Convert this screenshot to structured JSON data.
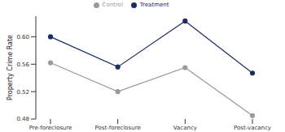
{
  "chart_data": {
    "type": "line",
    "y_label": "Property Crime Rate",
    "categories": [
      "Pre-foreclosure",
      "Post-foreclosure",
      "Vacancy",
      "Post-vacancy"
    ],
    "series": [
      {
        "name": "Control",
        "color": "#9a9a9a",
        "values": [
          0.562,
          0.52,
          0.555,
          0.485
        ]
      },
      {
        "name": "Treatment",
        "color": "#1c2a66",
        "values": [
          0.6,
          0.556,
          0.623,
          0.547
        ]
      }
    ],
    "ylim": [
      0.48,
      0.63
    ],
    "yticks": [
      0.48,
      0.52,
      0.56,
      {
        "value": 0.6,
        "label": "0.60"
      }
    ],
    "grid": false,
    "legend": "top",
    "marker": "circle"
  }
}
